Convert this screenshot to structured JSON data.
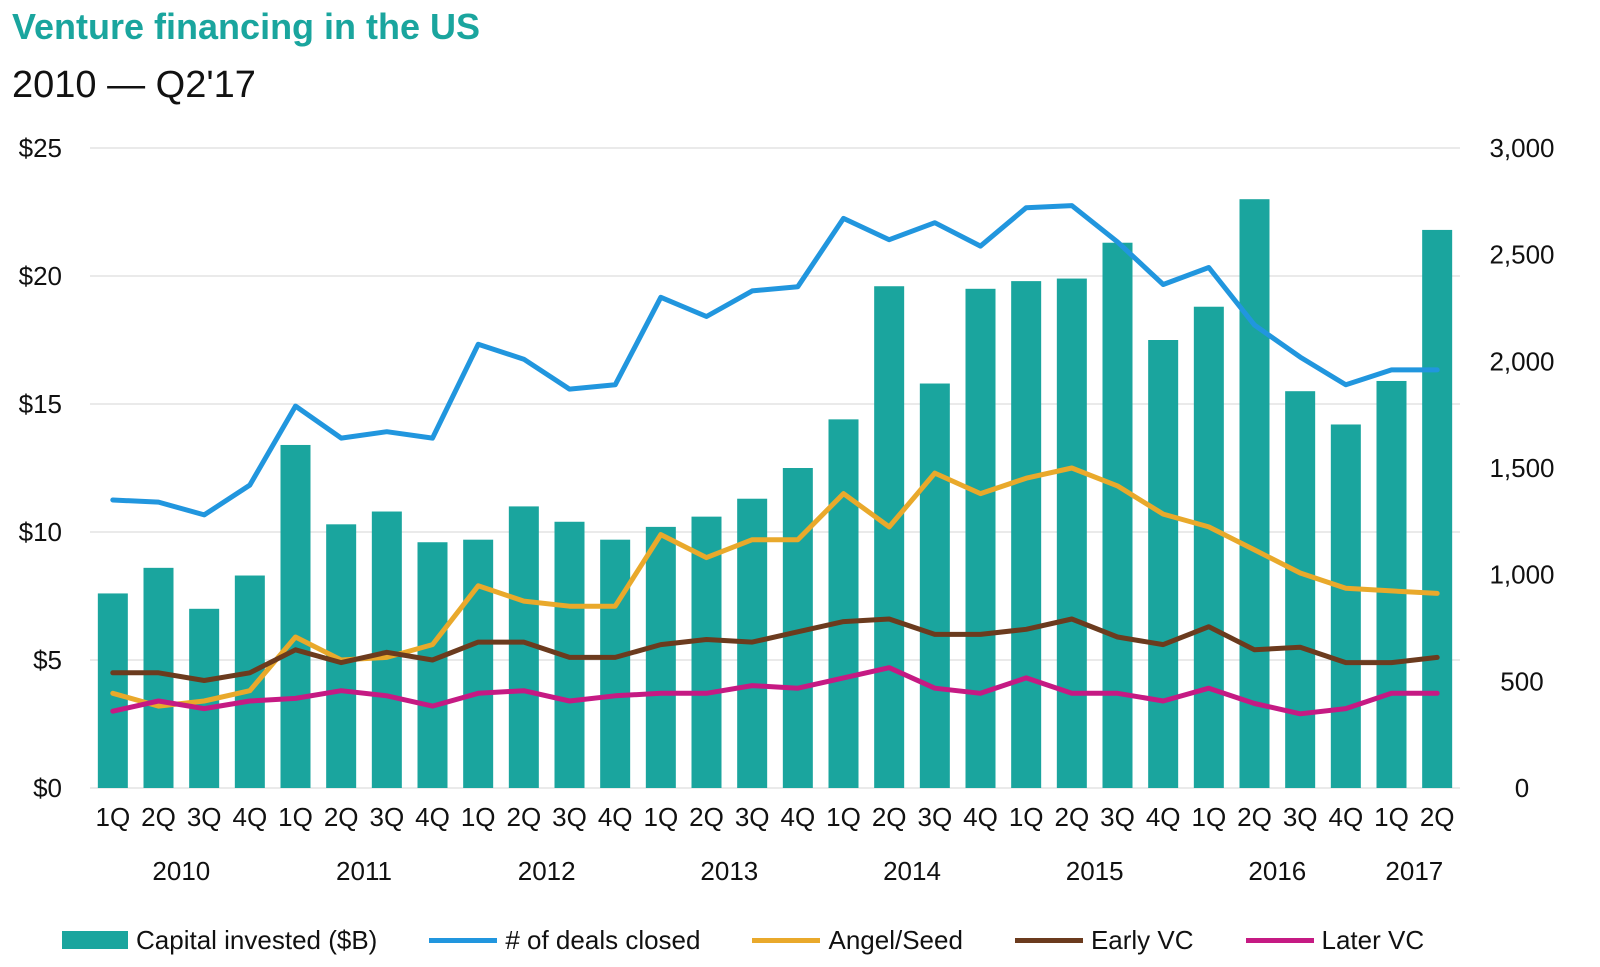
{
  "title": "Venture financing in the US",
  "subtitle": "2010 — Q2'17",
  "colors": {
    "bars": "#1aa59e",
    "deals": "#2196de",
    "angel": "#e9a92b",
    "early": "#6b3b1e",
    "later": "#c51a83",
    "grid": "#e3e3e3"
  },
  "chart_data": {
    "type": "bar",
    "categories": [
      "1Q",
      "2Q",
      "3Q",
      "4Q",
      "1Q",
      "2Q",
      "3Q",
      "4Q",
      "1Q",
      "2Q",
      "3Q",
      "4Q",
      "1Q",
      "2Q",
      "3Q",
      "4Q",
      "1Q",
      "2Q",
      "3Q",
      "4Q",
      "1Q",
      "2Q",
      "3Q",
      "4Q",
      "1Q",
      "2Q",
      "3Q",
      "4Q",
      "1Q",
      "2Q"
    ],
    "years": [
      "2010",
      "2011",
      "2012",
      "2013",
      "2014",
      "2015",
      "2016",
      "2017"
    ],
    "left_axis": {
      "ylim": [
        0,
        25
      ],
      "ticks": [
        "$0",
        "$5",
        "$10",
        "$15",
        "$20",
        "$25"
      ]
    },
    "right_axis": {
      "ylim": [
        0,
        3000
      ],
      "ticks": [
        "0",
        "500",
        "1,000",
        "1,500",
        "2,000",
        "2,500",
        "3,000"
      ]
    },
    "grid": true,
    "legend_position": "bottom",
    "series": [
      {
        "name": "Capital invested ($B)",
        "type": "bar",
        "axis": "left",
        "values": [
          7.6,
          8.6,
          7.0,
          8.3,
          13.4,
          10.3,
          10.8,
          9.6,
          9.7,
          11.0,
          10.4,
          9.7,
          10.2,
          10.6,
          11.3,
          12.5,
          14.4,
          19.6,
          15.8,
          19.5,
          19.8,
          19.9,
          21.3,
          17.5,
          18.8,
          23.0,
          15.5,
          14.2,
          15.9,
          21.8
        ]
      },
      {
        "name": "# of deals closed",
        "type": "line",
        "axis": "right",
        "values": [
          1350,
          1340,
          1280,
          1420,
          1790,
          1640,
          1670,
          1640,
          2080,
          2010,
          1870,
          1890,
          2300,
          2210,
          2330,
          2350,
          2670,
          2570,
          2650,
          2540,
          2720,
          2730,
          2560,
          2360,
          2440,
          2170,
          2020,
          1890,
          1960,
          1960
        ]
      },
      {
        "name": "Angel/Seed",
        "type": "line",
        "axis": "left",
        "values": [
          3.7,
          3.2,
          3.4,
          3.8,
          5.9,
          5.0,
          5.1,
          5.6,
          7.9,
          7.3,
          7.1,
          7.1,
          9.9,
          9.0,
          9.7,
          9.7,
          11.5,
          10.2,
          12.3,
          11.5,
          12.1,
          12.5,
          11.8,
          10.7,
          10.2,
          9.3,
          8.4,
          7.8,
          7.7,
          7.6
        ]
      },
      {
        "name": "Early VC",
        "type": "line",
        "axis": "left",
        "values": [
          4.5,
          4.5,
          4.2,
          4.5,
          5.4,
          4.9,
          5.3,
          5.0,
          5.7,
          5.7,
          5.1,
          5.1,
          5.6,
          5.8,
          5.7,
          6.1,
          6.5,
          6.6,
          6.0,
          6.0,
          6.2,
          6.6,
          5.9,
          5.6,
          6.3,
          5.4,
          5.5,
          4.9,
          4.9,
          5.1
        ]
      },
      {
        "name": "Later VC",
        "type": "line",
        "axis": "left",
        "values": [
          3.0,
          3.4,
          3.1,
          3.4,
          3.5,
          3.8,
          3.6,
          3.2,
          3.7,
          3.8,
          3.4,
          3.6,
          3.7,
          3.7,
          4.0,
          3.9,
          4.3,
          4.7,
          3.9,
          3.7,
          4.3,
          3.7,
          3.7,
          3.4,
          3.9,
          3.3,
          2.9,
          3.1,
          3.7,
          3.7
        ]
      }
    ]
  }
}
